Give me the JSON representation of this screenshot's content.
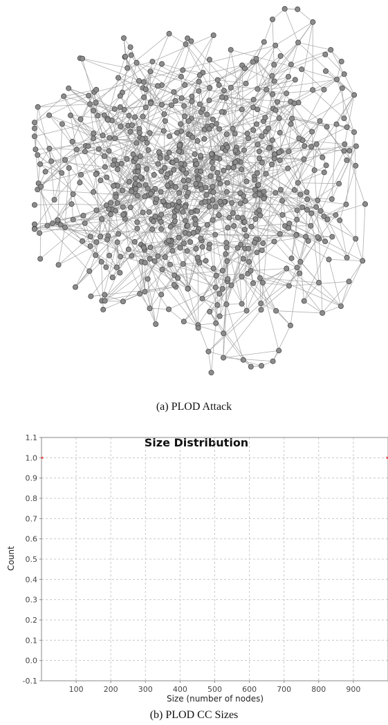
{
  "figure_a": {
    "caption": "(a) PLOD Attack"
  },
  "figure_b": {
    "caption": "(b) PLOD CC Sizes"
  },
  "chart_data": {
    "type": "scatter",
    "title": "Size Distribution",
    "xlabel": "Size (number of nodes)",
    "ylabel": "Count",
    "xlim": [
      0,
      1000
    ],
    "ylim": [
      -0.1,
      1.1
    ],
    "x_ticks": [
      100,
      200,
      300,
      400,
      500,
      600,
      700,
      800,
      900
    ],
    "y_ticks": [
      1.1,
      1.0,
      0.9,
      0.8,
      0.7,
      0.6,
      0.5,
      0.4,
      0.3,
      0.2,
      0.1,
      0.0,
      -0.1
    ],
    "y_tick_labels": [
      "1.1",
      "1.0",
      "0.9",
      "0.8",
      "0.7",
      "0.6",
      "0.5",
      "0.4",
      "0.3",
      "0.2",
      "0.1",
      "0.0",
      "-0.1"
    ],
    "grid": true,
    "points": [
      {
        "x": 2,
        "y": 1.0
      },
      {
        "x": 998,
        "y": 1.0
      }
    ],
    "point_color": "#e05555",
    "grid_color": "#c8c8c8"
  },
  "graph_style": {
    "node_fill": "#8c8c8c",
    "node_stroke": "#4a4a4a",
    "edge_color": "#9a9a9a"
  }
}
